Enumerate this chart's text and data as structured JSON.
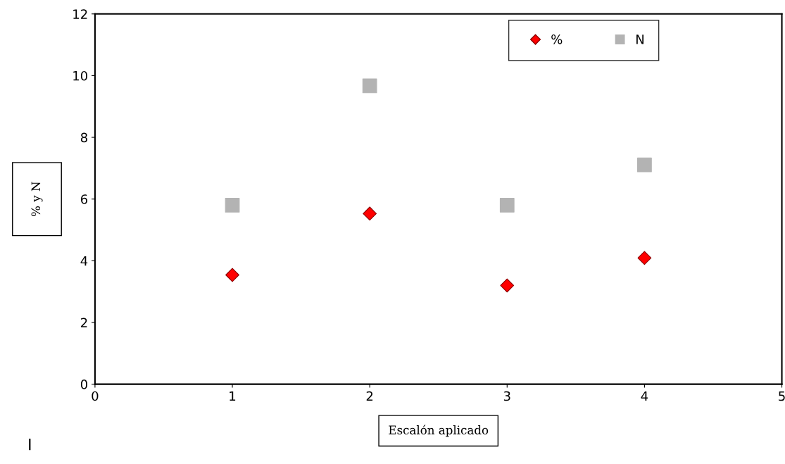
{
  "chart_data": {
    "type": "scatter",
    "xlabel": "Escalón aplicado",
    "ylabel": "% y N",
    "x": [
      1,
      2,
      3,
      4
    ],
    "series": [
      {
        "name": "%",
        "color": "#ff0000",
        "values": [
          3.54,
          5.53,
          3.2,
          4.09
        ],
        "marker": "diamond"
      },
      {
        "name": "N",
        "color": "#b3b3b3",
        "values": [
          5.8,
          9.67,
          5.8,
          7.11
        ],
        "marker": "square"
      }
    ],
    "xlim": [
      0,
      5
    ],
    "xticks": [
      0,
      1,
      2,
      3,
      4,
      5
    ],
    "ylim": [
      0,
      12
    ],
    "yticks": [
      0,
      2,
      4,
      6,
      8,
      10,
      12
    ],
    "grid": false,
    "legend": "top right",
    "annotations": [
      "I"
    ]
  }
}
